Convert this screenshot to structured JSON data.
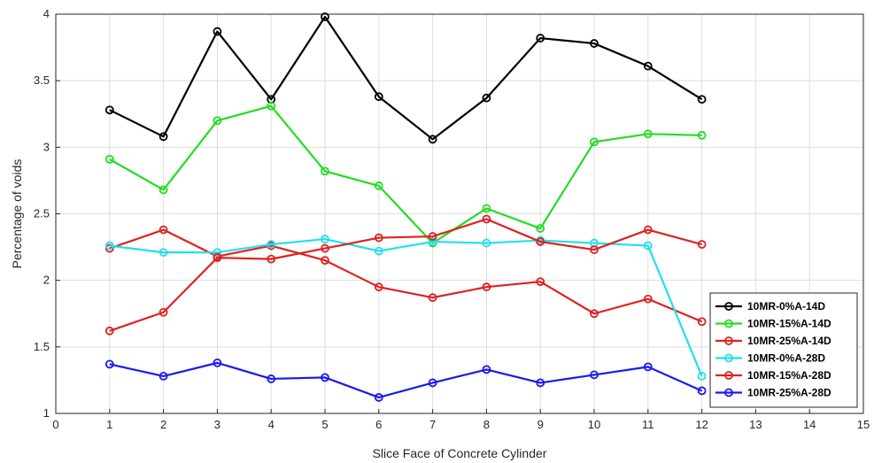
{
  "chart_data": {
    "type": "line",
    "title": "",
    "xlabel": "Slice Face of Concrete Cylinder",
    "ylabel": "Percentage of voids",
    "xlim": [
      0,
      15
    ],
    "ylim": [
      1,
      4
    ],
    "xticks": [
      0,
      1,
      2,
      3,
      4,
      5,
      6,
      7,
      8,
      9,
      10,
      11,
      12,
      13,
      14,
      15
    ],
    "yticks": [
      1,
      1.5,
      2,
      2.5,
      3,
      3.5,
      4
    ],
    "ytick_labels": [
      "1",
      "1.5",
      "2",
      "2.5",
      "3",
      "3.5",
      "4"
    ],
    "grid": true,
    "legend_position": "bottom-right",
    "x": [
      1,
      2,
      3,
      4,
      5,
      6,
      7,
      8,
      9,
      10,
      11,
      12
    ],
    "series": [
      {
        "name": "10MR-0%A-14D",
        "color": "#000000",
        "values": [
          3.28,
          3.08,
          3.87,
          3.36,
          3.98,
          3.38,
          3.06,
          3.37,
          3.82,
          3.78,
          3.61,
          3.36
        ]
      },
      {
        "name": "10MR-15%A-14D",
        "color": "#22dd22",
        "values": [
          2.91,
          2.68,
          3.2,
          3.31,
          2.82,
          2.71,
          2.28,
          2.54,
          2.39,
          3.04,
          3.1,
          3.09
        ]
      },
      {
        "name": "10MR-25%A-14D",
        "color": "#e02020",
        "values": [
          2.24,
          2.38,
          2.18,
          2.26,
          2.15,
          1.95,
          1.87,
          1.95,
          1.99,
          1.75,
          1.86,
          1.69
        ]
      },
      {
        "name": "10MR-0%A-28D",
        "color": "#22e0e8",
        "values": [
          2.26,
          2.21,
          2.21,
          2.27,
          2.31,
          2.22,
          2.29,
          2.28,
          2.3,
          2.28,
          2.26,
          1.28
        ]
      },
      {
        "name": "10MR-15%A-28D",
        "color": "#e02020",
        "values": [
          1.62,
          1.76,
          2.17,
          2.16,
          2.24,
          2.32,
          2.33,
          2.46,
          2.29,
          2.23,
          2.38,
          2.27
        ]
      },
      {
        "name": "10MR-25%A-28D",
        "color": "#1a1aee",
        "values": [
          1.37,
          1.28,
          1.38,
          1.26,
          1.27,
          1.12,
          1.23,
          1.33,
          1.23,
          1.29,
          1.35,
          1.17
        ]
      }
    ]
  }
}
